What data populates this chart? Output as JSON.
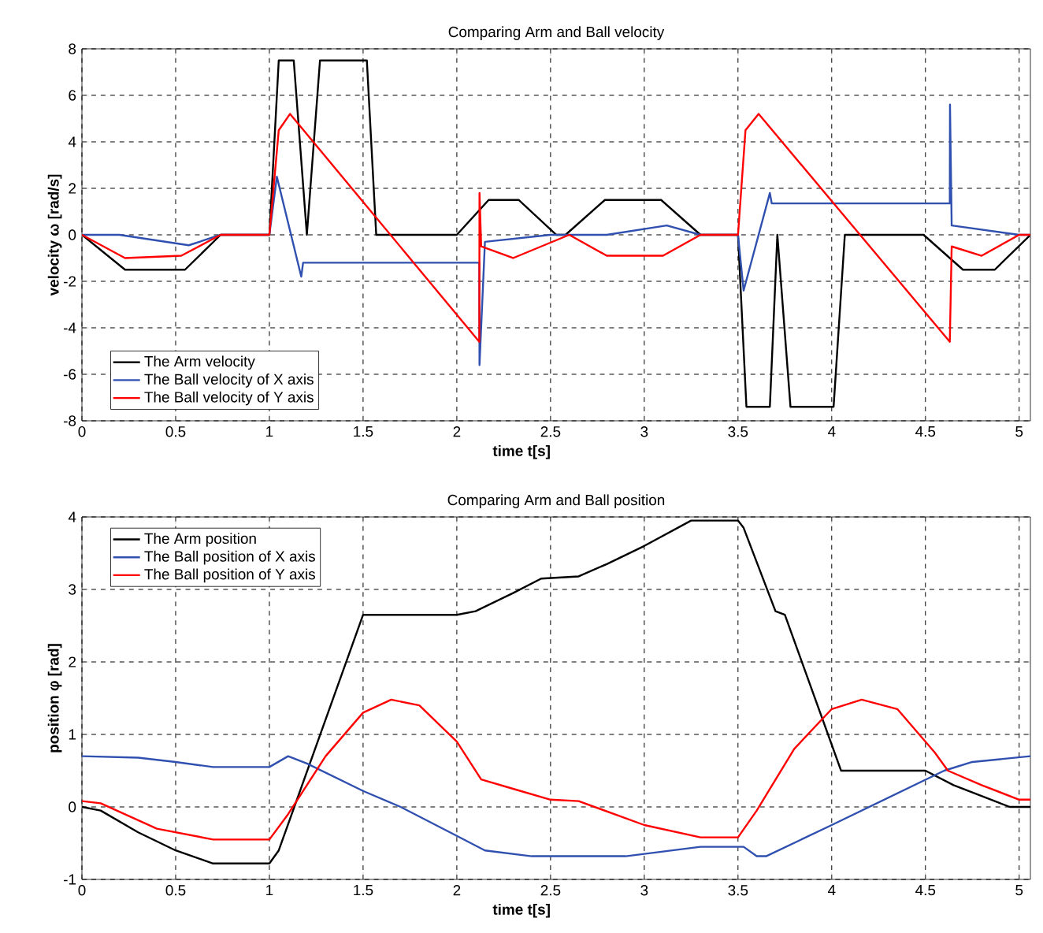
{
  "chart_data": [
    {
      "type": "line",
      "title": "Comparing Arm and Ball velocity",
      "xlabel": "time t[s]",
      "ylabel": "velocity ω [rad/s]",
      "xlim": [
        0,
        5.06
      ],
      "ylim": [
        -8,
        8
      ],
      "xticks": [
        0,
        0.5,
        1,
        1.5,
        2,
        2.5,
        3,
        3.5,
        4,
        4.5,
        5
      ],
      "yticks": [
        -8,
        -6,
        -4,
        -2,
        0,
        2,
        4,
        6,
        8
      ],
      "grid": true,
      "legend": "bottom left",
      "line_style": "solid",
      "marker": "none",
      "series": [
        {
          "name": "The Arm velocity",
          "color": "#000000",
          "x": [
            0,
            0.23,
            0.55,
            0.74,
            1.0,
            1.05,
            1.13,
            1.2,
            1.27,
            1.52,
            1.57,
            2.0,
            2.17,
            2.33,
            2.53,
            2.58,
            2.79,
            3.09,
            3.3,
            3.5,
            3.545,
            3.67,
            3.71,
            3.78,
            4.01,
            4.07,
            4.49,
            4.7,
            4.87,
            5.06
          ],
          "values": [
            0,
            -1.5,
            -1.5,
            0,
            0,
            7.5,
            7.5,
            0,
            7.5,
            7.5,
            0,
            0,
            1.5,
            1.5,
            0,
            0,
            1.5,
            1.5,
            0,
            0,
            -7.4,
            -7.4,
            0,
            -7.4,
            -7.4,
            0,
            0,
            -1.5,
            -1.5,
            0
          ]
        },
        {
          "name": "The Ball velocity of  X axis",
          "color": "#3050b0",
          "x": [
            0,
            0.2,
            0.57,
            0.74,
            1.0,
            1.04,
            1.17,
            1.18,
            2.12,
            2.121,
            2.15,
            2.5,
            2.8,
            3.12,
            3.3,
            3.5,
            3.53,
            3.67,
            3.68,
            4.63,
            4.631,
            4.64,
            5.0,
            5.06
          ],
          "values": [
            0,
            0,
            -0.45,
            0,
            0,
            2.5,
            -1.8,
            -1.2,
            -1.2,
            -5.6,
            -0.3,
            0,
            0,
            0.4,
            0,
            0,
            -2.4,
            1.8,
            1.35,
            1.35,
            5.6,
            0.4,
            0,
            0
          ]
        },
        {
          "name": "The Ball velocity of Y axis",
          "color": "#ff0000",
          "x": [
            0,
            0.23,
            0.53,
            0.74,
            1.0,
            1.05,
            1.11,
            2.12,
            2.121,
            2.13,
            2.3,
            2.6,
            2.8,
            3.1,
            3.3,
            3.5,
            3.54,
            3.61,
            4.63,
            4.64,
            4.8,
            5.0,
            5.06
          ],
          "values": [
            0,
            -1.0,
            -0.9,
            0,
            0,
            4.5,
            5.2,
            -4.6,
            1.8,
            -0.5,
            -1.0,
            0,
            -0.9,
            -0.9,
            0,
            0,
            4.5,
            5.2,
            -4.6,
            -0.5,
            -0.9,
            0,
            0
          ]
        }
      ]
    },
    {
      "type": "line",
      "title": "Comparing Arm and Ball position",
      "xlabel": "time t[s]",
      "ylabel": "position φ [rad]",
      "xlim": [
        0,
        5.06
      ],
      "ylim": [
        -1,
        4
      ],
      "xticks": [
        0,
        0.5,
        1,
        1.5,
        2,
        2.5,
        3,
        3.5,
        4,
        4.5,
        5
      ],
      "yticks": [
        -1,
        0,
        1,
        2,
        3,
        4
      ],
      "grid": true,
      "legend": "top left",
      "line_style": "solid",
      "marker": "none",
      "series": [
        {
          "name": "The Arm position",
          "color": "#000000",
          "x": [
            0,
            0.1,
            0.3,
            0.5,
            0.7,
            1.0,
            1.05,
            1.5,
            2.0,
            2.1,
            2.3,
            2.45,
            2.65,
            2.8,
            3.0,
            3.25,
            3.5,
            3.53,
            3.7,
            3.75,
            4.05,
            4.5,
            4.65,
            4.95,
            5.06
          ],
          "values": [
            0,
            -0.05,
            -0.35,
            -0.6,
            -0.78,
            -0.78,
            -0.6,
            2.65,
            2.65,
            2.7,
            2.95,
            3.15,
            3.18,
            3.35,
            3.6,
            3.95,
            3.95,
            3.85,
            2.7,
            2.65,
            0.5,
            0.5,
            0.3,
            0,
            0
          ]
        },
        {
          "name": "The Ball position of  X axis",
          "color": "#3050b0",
          "x": [
            0,
            0.3,
            0.5,
            0.7,
            1.0,
            1.1,
            1.2,
            1.5,
            1.7,
            2.0,
            2.15,
            2.4,
            2.9,
            3.3,
            3.53,
            3.6,
            3.65,
            4.0,
            4.6,
            4.75,
            5.06
          ],
          "values": [
            0.7,
            0.68,
            0.62,
            0.55,
            0.55,
            0.7,
            0.6,
            0.22,
            0,
            -0.4,
            -0.6,
            -0.68,
            -0.68,
            -0.55,
            -0.55,
            -0.68,
            -0.68,
            -0.25,
            0.5,
            0.62,
            0.7
          ]
        },
        {
          "name": "The Ball position of Y axis",
          "color": "#ff0000",
          "x": [
            0,
            0.1,
            0.4,
            0.7,
            1.0,
            1.1,
            1.3,
            1.5,
            1.65,
            1.8,
            2.0,
            2.13,
            2.3,
            2.5,
            2.65,
            3.0,
            3.3,
            3.5,
            3.6,
            3.8,
            4.0,
            4.16,
            4.35,
            4.55,
            4.62,
            4.8,
            5.0,
            5.06
          ],
          "values": [
            0.08,
            0.05,
            -0.3,
            -0.45,
            -0.45,
            -0.1,
            0.7,
            1.3,
            1.48,
            1.4,
            0.9,
            0.38,
            0.25,
            0.1,
            0.08,
            -0.25,
            -0.42,
            -0.42,
            -0.05,
            0.8,
            1.35,
            1.48,
            1.35,
            0.75,
            0.5,
            0.3,
            0.1,
            0.1
          ]
        }
      ]
    }
  ]
}
